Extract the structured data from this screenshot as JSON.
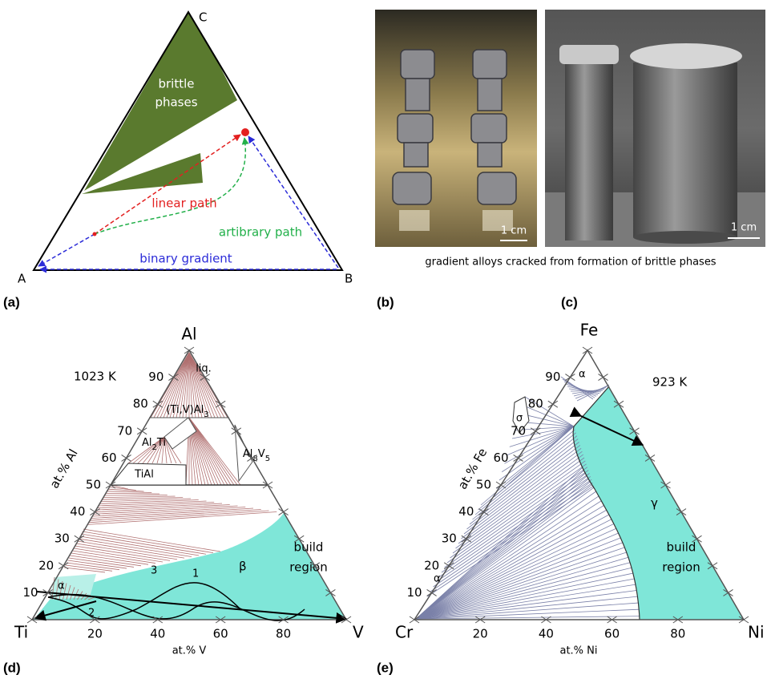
{
  "panel_a": {
    "label": "(a)",
    "A": "A",
    "B": "B",
    "C": "C",
    "brittle": [
      "brittle",
      "phases"
    ],
    "linear": "linear path",
    "arbitrary": "artibrary path",
    "binary": "binary gradient"
  },
  "panel_b": {
    "label": "(b)",
    "scale": "1 cm"
  },
  "panel_c": {
    "label": "(c)",
    "scale": "1 cm"
  },
  "caption": "gradient alloys cracked from formation of brittle phases",
  "panel_d": {
    "label": "(d)",
    "apex": "Al",
    "left": "Ti",
    "right": "V",
    "liq": "liq.",
    "temp": "1023 K",
    "left_ticks": [
      10,
      20,
      30,
      40,
      50,
      60,
      70,
      80,
      90
    ],
    "bottom_ticks": [
      20,
      40,
      60,
      80
    ],
    "left_axis": "at.% Al",
    "bottom_axis": "at.% V",
    "phase_labels": [
      {
        "parts": [
          {
            "text": "(Ti,V)Al"
          },
          {
            "text": "3",
            "sub": true
          }
        ]
      },
      {
        "parts": [
          {
            "text": "Al"
          },
          {
            "text": "2",
            "sub": true
          },
          {
            "text": "Ti"
          }
        ]
      },
      {
        "parts": [
          {
            "text": "Al"
          },
          {
            "text": "8",
            "sub": true
          },
          {
            "text": "V"
          },
          {
            "text": "5",
            "sub": true
          }
        ]
      },
      {
        "parts": [
          {
            "text": "TiAl"
          }
        ]
      }
    ],
    "build": [
      "build",
      "region"
    ],
    "alpha": "α",
    "beta": "β",
    "paths": [
      "1",
      "2",
      "3"
    ]
  },
  "panel_e": {
    "label": "(e)",
    "apex": "Fe",
    "left": "Cr",
    "right": "Ni",
    "temp": "923 K",
    "left_ticks": [
      10,
      20,
      30,
      40,
      50,
      60,
      70,
      80,
      90
    ],
    "bottom_ticks": [
      20,
      40,
      60,
      80
    ],
    "left_axis": "at.% Fe",
    "bottom_axis": "at.% Ni",
    "alpha_top": "α",
    "alpha_bottom": "α",
    "sigma": "σ",
    "gamma": "γ",
    "build": [
      "build",
      "region"
    ]
  }
}
